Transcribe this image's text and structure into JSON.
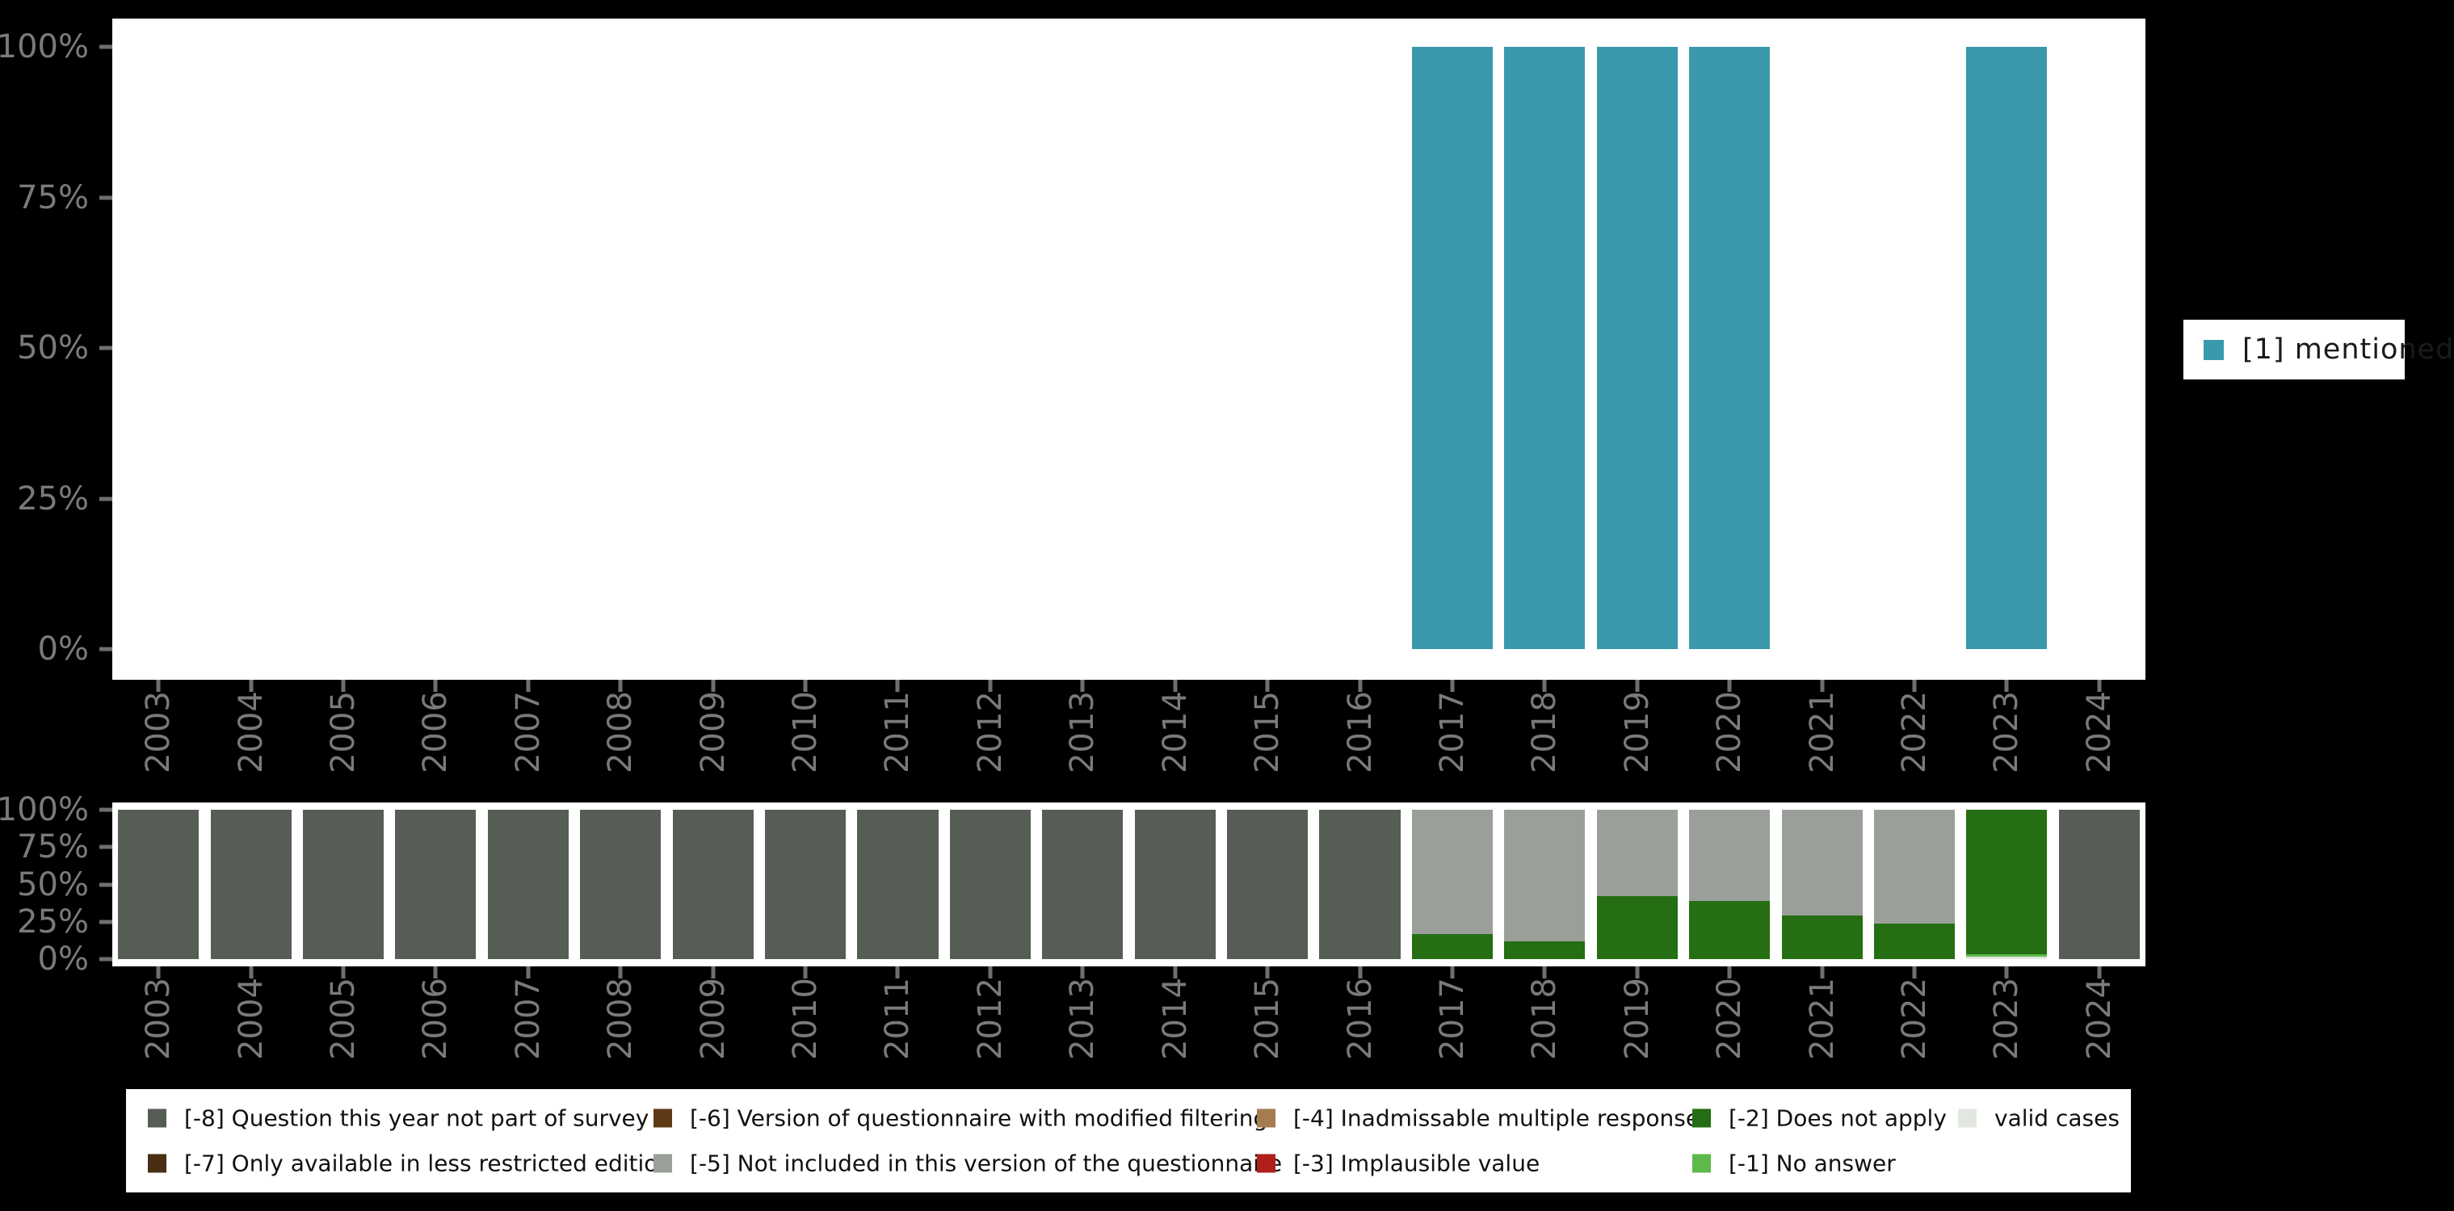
{
  "chart_data": [
    {
      "id": "top_chart",
      "type": "bar",
      "title": "",
      "xlabel": "",
      "ylabel": "",
      "categories": [
        "2003",
        "2004",
        "2005",
        "2006",
        "2007",
        "2008",
        "2009",
        "2010",
        "2011",
        "2012",
        "2013",
        "2014",
        "2015",
        "2016",
        "2017",
        "2018",
        "2019",
        "2020",
        "2021",
        "2022",
        "2023",
        "2024"
      ],
      "y_ticks": [
        "100%",
        "75%",
        "50%",
        "25%",
        "0%"
      ],
      "ylim": [
        0,
        100
      ],
      "grid": false,
      "legend_position": "right",
      "series": [
        {
          "name": "[1] mentioned",
          "color": "#3b99ad",
          "values": [
            0,
            0,
            0,
            0,
            0,
            0,
            0,
            0,
            0,
            0,
            0,
            0,
            0,
            0,
            100,
            100,
            100,
            100,
            0,
            0,
            100,
            0
          ]
        }
      ]
    },
    {
      "id": "bottom_chart",
      "type": "stacked-bar",
      "title": "",
      "xlabel": "",
      "ylabel": "",
      "categories": [
        "2003",
        "2004",
        "2005",
        "2006",
        "2007",
        "2008",
        "2009",
        "2010",
        "2011",
        "2012",
        "2013",
        "2014",
        "2015",
        "2016",
        "2017",
        "2018",
        "2019",
        "2020",
        "2021",
        "2022",
        "2023",
        "2024"
      ],
      "y_ticks": [
        "100%",
        "75%",
        "50%",
        "25%",
        "0%"
      ],
      "ylim": [
        0,
        100
      ],
      "grid": false,
      "stack_order": "bottom-to-top",
      "series": [
        {
          "name": "valid cases",
          "color": "#e3e7e1",
          "values": [
            0,
            0,
            0,
            0,
            0,
            0,
            0,
            0,
            0,
            0,
            0,
            0,
            0,
            0,
            0,
            0,
            0,
            0,
            0,
            0,
            1.5,
            0
          ]
        },
        {
          "name": "[-1] No answer",
          "color": "#5dba4a",
          "values": [
            0,
            0,
            0,
            0,
            0,
            0,
            0,
            0,
            0,
            0,
            0,
            0,
            0,
            0,
            0,
            0,
            0,
            0,
            0,
            0,
            1.5,
            0
          ]
        },
        {
          "name": "[-2] Does not apply",
          "color": "#256e13",
          "values": [
            0,
            0,
            0,
            0,
            0,
            0,
            0,
            0,
            0,
            0,
            0,
            0,
            0,
            0,
            17,
            12,
            42,
            39,
            29,
            24,
            97,
            0
          ]
        },
        {
          "name": "[-5] Not included in this version of the questionnaire",
          "color": "#9aa099",
          "values": [
            0,
            0,
            0,
            0,
            0,
            0,
            0,
            0,
            0,
            0,
            0,
            0,
            0,
            0,
            83,
            88,
            58,
            61,
            71,
            76,
            0,
            0
          ]
        },
        {
          "name": "[-8] Question this year not part of survey",
          "color": "#565d55",
          "values": [
            100,
            100,
            100,
            100,
            100,
            100,
            100,
            100,
            100,
            100,
            100,
            100,
            100,
            100,
            0,
            0,
            0,
            0,
            0,
            0,
            0,
            100
          ]
        }
      ]
    }
  ],
  "top_legend": {
    "label": "[1] mentioned",
    "color": "#3b99ad"
  },
  "bottom_legend": {
    "columns": [
      {
        "items": [
          {
            "label": "[-8] Question this year not part of survey",
            "color": "#565d55"
          },
          {
            "label": "[-7] Only available in less restricted edition",
            "color": "#4a2e14"
          }
        ]
      },
      {
        "items": [
          {
            "label": "[-6] Version of questionnaire with modified filtering",
            "color": "#5e3a17"
          },
          {
            "label": "[-5] Not included in this version of the questionnaire",
            "color": "#9aa099"
          }
        ]
      },
      {
        "items": [
          {
            "label": "[-4] Inadmissable multiple response",
            "color": "#a57c4f"
          },
          {
            "label": "[-3] Implausible value",
            "color": "#b01f1a"
          }
        ]
      },
      {
        "items": [
          {
            "label": "[-2] Does not apply",
            "color": "#256e13"
          },
          {
            "label": "[-1] No answer",
            "color": "#5dba4a"
          }
        ]
      },
      {
        "items": [
          {
            "label": "valid cases",
            "color": "#e3e7e1"
          }
        ]
      }
    ]
  }
}
